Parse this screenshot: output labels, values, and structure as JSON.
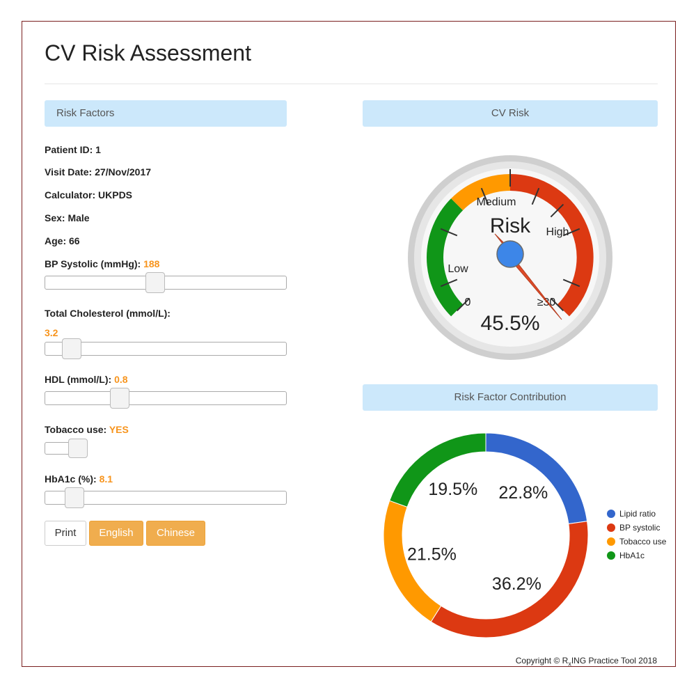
{
  "title": "CV Risk Assessment",
  "panels": {
    "risk_factors": "Risk Factors",
    "cv_risk": "CV Risk",
    "contribution": "Risk Factor Contribution"
  },
  "patient": {
    "id_label": "Patient ID: 1",
    "visit_label": "Visit Date: 27/Nov/2017",
    "calculator_label": "Calculator: UKPDS",
    "sex_label": "Sex: Male",
    "age_label": "Age: 66"
  },
  "controls": {
    "bp": {
      "label": "BP Systolic (mmHg):",
      "value": "188"
    },
    "cholesterol": {
      "label": "Total Cholesterol (mmol/L):",
      "value": "3.2"
    },
    "hdl": {
      "label": "HDL (mmol/L):",
      "value": "0.8"
    },
    "tobacco": {
      "label": "Tobacco use:",
      "value": "YES"
    },
    "hba1c": {
      "label": "HbA1c (%):",
      "value": "8.1"
    }
  },
  "buttons": {
    "print": "Print",
    "english": "English",
    "chinese": "Chinese"
  },
  "gauge": {
    "title": "Risk",
    "value_text": "45.5%",
    "label_low": "Low",
    "label_medium": "Medium",
    "label_high": "High",
    "min_label": "0",
    "max_label": "≥30"
  },
  "chart_data": {
    "type": "pie",
    "categories": [
      "Lipid ratio",
      "BP systolic",
      "Tobacco use",
      "HbA1c"
    ],
    "values": [
      22.8,
      36.2,
      21.5,
      19.5
    ],
    "labels": [
      "22.8%",
      "36.2%",
      "21.5%",
      "19.5%"
    ],
    "colors": [
      "#3366cc",
      "#dc3912",
      "#ff9900",
      "#109618"
    ],
    "legend_position": "right"
  },
  "copyright": {
    "prefix": "Copyright © R",
    "sub": "x",
    "suffix": "ING Practice Tool 2018"
  }
}
